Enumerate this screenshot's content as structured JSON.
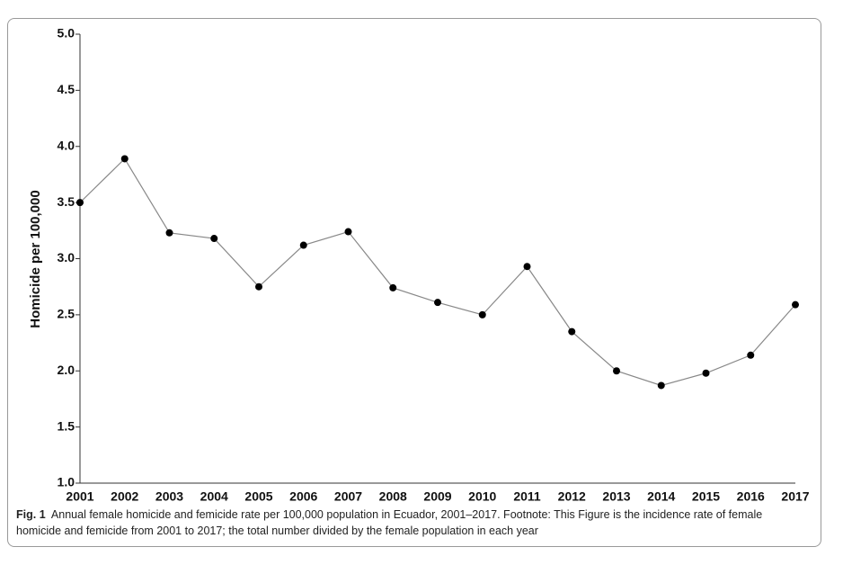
{
  "chart_data": {
    "type": "line",
    "y_label": "Homicide per 100,000",
    "categories": [
      "2001",
      "2002",
      "2003",
      "2004",
      "2005",
      "2006",
      "2007",
      "2008",
      "2009",
      "2010",
      "2011",
      "2012",
      "2013",
      "2014",
      "2015",
      "2016",
      "2017"
    ],
    "values": [
      3.5,
      3.89,
      3.23,
      3.18,
      2.75,
      3.12,
      3.24,
      2.74,
      2.61,
      2.5,
      2.93,
      2.35,
      2.0,
      1.87,
      1.98,
      2.14,
      2.59
    ],
    "color": "#888888",
    "marker_color": "#000000",
    "ylim": [
      1.0,
      5.0
    ],
    "yticks": [
      {
        "value": 1.0,
        "label": "1.0"
      },
      {
        "value": 1.5,
        "label": "1.5"
      },
      {
        "value": 2.0,
        "label": "2.0"
      },
      {
        "value": 2.5,
        "label": "2.5"
      },
      {
        "value": 3.0,
        "label": "3.0"
      },
      {
        "value": 3.5,
        "label": "3.5"
      },
      {
        "value": 4.0,
        "label": "4.0"
      },
      {
        "value": 4.5,
        "label": "4.5"
      },
      {
        "value": 5.0,
        "label": "5.0"
      }
    ],
    "grid": false,
    "caption_label": "Fig. 1",
    "caption": "Annual female homicide and femicide rate per 100,000 population in Ecuador, 2001–2017. Footnote:  This Figure  is the incidence rate of female homicide and femicide from 2001 to 2017; the total number divided by the female population in each year"
  }
}
